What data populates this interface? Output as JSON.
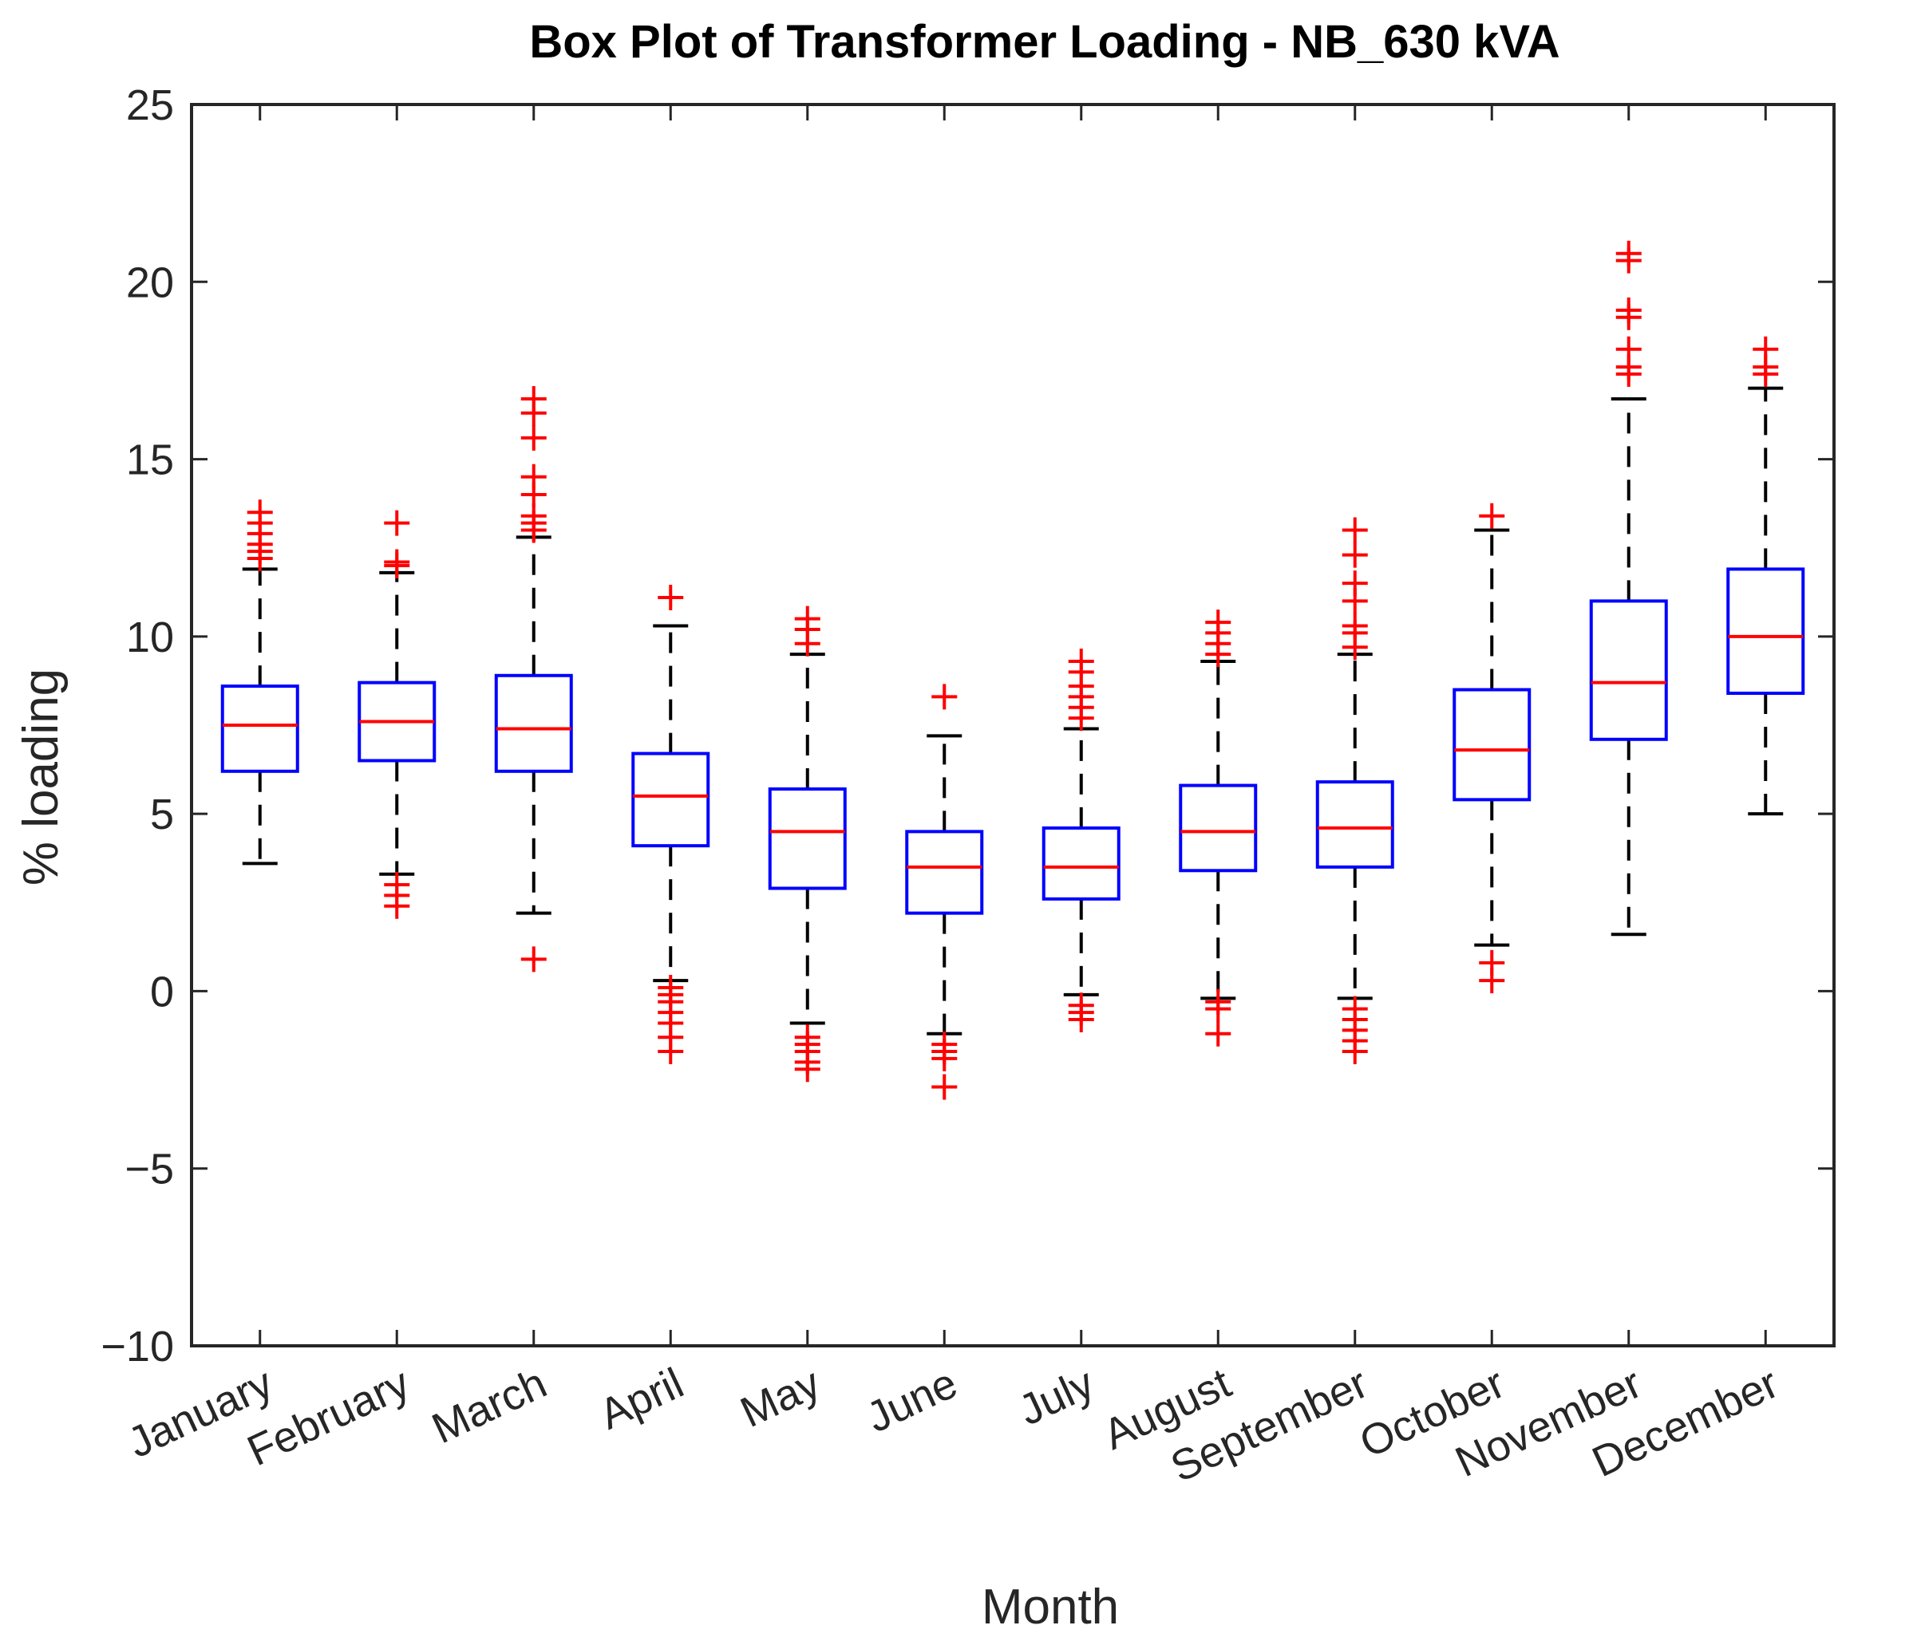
{
  "chart_data": {
    "type": "boxplot",
    "title": "Box Plot of Transformer Loading - NB_630 kVA",
    "xlabel": "Month",
    "ylabel": "% loading",
    "ylim": [
      -10,
      25
    ],
    "yticks": [
      -10,
      -5,
      0,
      5,
      10,
      15,
      20,
      25
    ],
    "ytick_labels": [
      "−10",
      "−5",
      "0",
      "5",
      "10",
      "15",
      "20",
      "25"
    ],
    "categories": [
      "January",
      "February",
      "March",
      "April",
      "May",
      "June",
      "July",
      "August",
      "September",
      "October",
      "November",
      "December"
    ],
    "colors": {
      "box": "#0000ff",
      "median": "#ff0000",
      "whisker": "#000000",
      "outlier": "#ff0000",
      "axis": "#262626"
    },
    "boxes": [
      {
        "month": "January",
        "whislo": 3.6,
        "q1": 6.2,
        "med": 7.5,
        "q3": 8.6,
        "whishi": 11.9,
        "fliers": [
          12.2,
          12.4,
          12.6,
          12.9,
          13.2,
          13.5
        ]
      },
      {
        "month": "February",
        "whislo": 3.3,
        "q1": 6.5,
        "med": 7.6,
        "q3": 8.7,
        "whishi": 11.8,
        "fliers": [
          12.0,
          12.1,
          13.2,
          3.0,
          2.7,
          2.4
        ]
      },
      {
        "month": "March",
        "whislo": 2.2,
        "q1": 6.2,
        "med": 7.4,
        "q3": 8.9,
        "whishi": 12.8,
        "fliers": [
          13.0,
          13.2,
          13.4,
          14.0,
          14.5,
          15.6,
          16.3,
          16.7,
          0.9
        ]
      },
      {
        "month": "April",
        "whislo": 0.3,
        "q1": 4.1,
        "med": 5.5,
        "q3": 6.7,
        "whishi": 10.3,
        "fliers": [
          11.1,
          0.1,
          -0.1,
          -0.3,
          -0.6,
          -0.9,
          -1.3,
          -1.7
        ]
      },
      {
        "month": "May",
        "whislo": -0.9,
        "q1": 2.9,
        "med": 4.5,
        "q3": 5.7,
        "whishi": 9.5,
        "fliers": [
          9.8,
          10.2,
          10.5,
          -1.3,
          -1.5,
          -1.7,
          -2.0,
          -2.2
        ]
      },
      {
        "month": "June",
        "whislo": -1.2,
        "q1": 2.2,
        "med": 3.5,
        "q3": 4.5,
        "whishi": 7.2,
        "fliers": [
          8.3,
          -1.5,
          -1.7,
          -1.9,
          -2.7
        ]
      },
      {
        "month": "July",
        "whislo": -0.1,
        "q1": 2.6,
        "med": 3.5,
        "q3": 4.6,
        "whishi": 7.4,
        "fliers": [
          7.7,
          8.0,
          8.3,
          8.6,
          9.0,
          9.3,
          -0.4,
          -0.6,
          -0.8
        ]
      },
      {
        "month": "August",
        "whislo": -0.2,
        "q1": 3.4,
        "med": 4.5,
        "q3": 5.8,
        "whishi": 9.3,
        "fliers": [
          9.5,
          9.8,
          10.1,
          10.4,
          -0.3,
          -0.5,
          -1.2
        ]
      },
      {
        "month": "September",
        "whislo": -0.2,
        "q1": 3.5,
        "med": 4.6,
        "q3": 5.9,
        "whishi": 9.5,
        "fliers": [
          9.7,
          10.1,
          10.3,
          11.0,
          11.5,
          12.3,
          13.0,
          -0.5,
          -0.8,
          -1.1,
          -1.4,
          -1.7
        ]
      },
      {
        "month": "October",
        "whislo": 1.3,
        "q1": 5.4,
        "med": 6.8,
        "q3": 8.5,
        "whishi": 13.0,
        "fliers": [
          13.4,
          0.8,
          0.3
        ]
      },
      {
        "month": "November",
        "whislo": 1.6,
        "q1": 7.1,
        "med": 8.7,
        "q3": 11.0,
        "whishi": 16.7,
        "fliers": [
          17.4,
          17.6,
          18.1,
          19.0,
          19.2,
          20.6,
          20.8
        ]
      },
      {
        "month": "December",
        "whislo": 5.0,
        "q1": 8.4,
        "med": 10.0,
        "q3": 11.9,
        "whishi": 17.0,
        "fliers": [
          17.4,
          17.6,
          18.1
        ]
      }
    ]
  }
}
